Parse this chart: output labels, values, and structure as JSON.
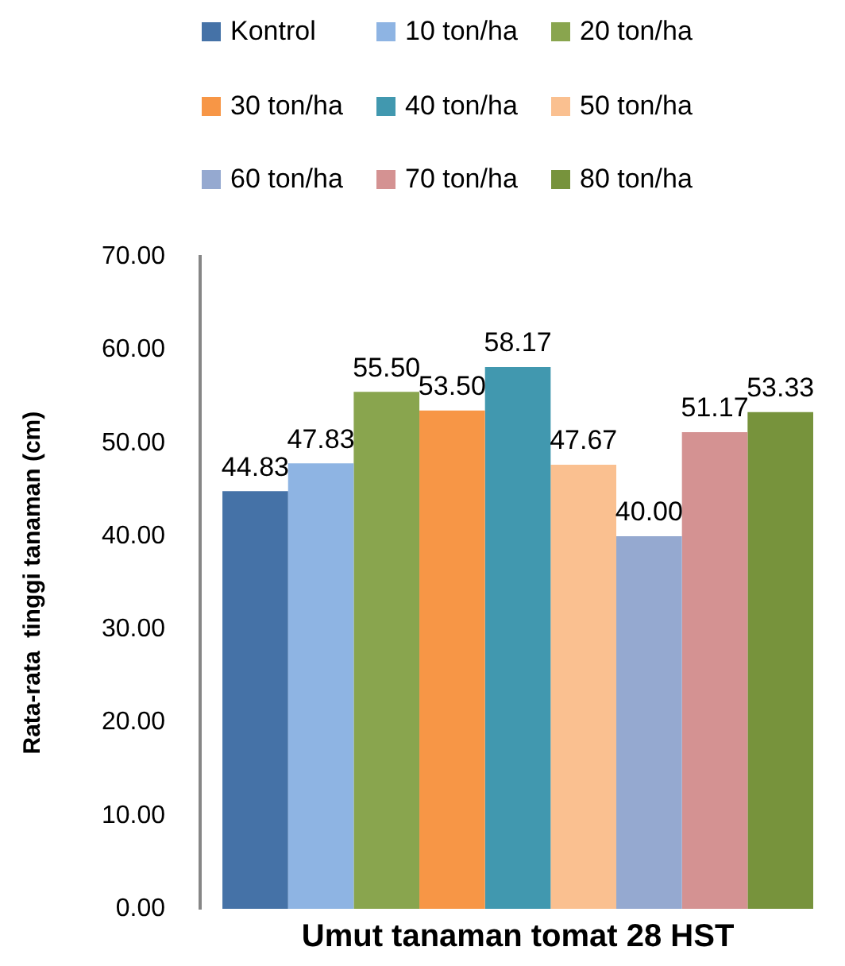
{
  "chart_data": {
    "type": "bar",
    "ylabel": "Rata-rata  tinggi tanaman (cm)",
    "xlabel": "Umut tanaman tomat 28 HST",
    "categories": [
      null
    ],
    "tick_labels": "y",
    "ylim": [
      0,
      70
    ],
    "yticks": [
      {
        "value": 0,
        "label": "0.00"
      },
      {
        "value": 10,
        "label": "10.00"
      },
      {
        "value": 20,
        "label": "20.00"
      },
      {
        "value": 30,
        "label": "30.00"
      },
      {
        "value": 40,
        "label": "40.00"
      },
      {
        "value": 50,
        "label": "50.00"
      },
      {
        "value": 60,
        "label": "60.00"
      },
      {
        "value": 70,
        "label": "70.00"
      }
    ],
    "grid": false,
    "legend": "top",
    "series": [
      {
        "name": "Kontrol",
        "color": "#4572a7",
        "values": [
          44.83
        ],
        "value_labels": [
          "44.83"
        ]
      },
      {
        "name": "10 ton/ha",
        "color": "#8eb4e3",
        "values": [
          47.83
        ],
        "value_labels": [
          "47.83"
        ]
      },
      {
        "name": "20 ton/ha",
        "color": "#89a54e",
        "values": [
          55.5
        ],
        "value_labels": [
          "55.50"
        ]
      },
      {
        "name": "30 ton/ha",
        "color": "#f79646",
        "values": [
          53.5
        ],
        "value_labels": [
          "53.50"
        ]
      },
      {
        "name": "40 ton/ha",
        "color": "#4198af",
        "values": [
          58.17
        ],
        "value_labels": [
          "58.17"
        ]
      },
      {
        "name": "50 ton/ha",
        "color": "#fac090",
        "values": [
          47.67
        ],
        "value_labels": [
          "47.67"
        ]
      },
      {
        "name": "60 ton/ha",
        "color": "#95a9d0",
        "values": [
          40.0
        ],
        "value_labels": [
          "40.00"
        ]
      },
      {
        "name": "70 ton/ha",
        "color": "#d49292",
        "values": [
          51.17
        ],
        "value_labels": [
          "51.17"
        ]
      },
      {
        "name": "80 ton/ha",
        "color": "#77933c",
        "values": [
          53.33
        ],
        "value_labels": [
          "53.33"
        ]
      }
    ]
  }
}
